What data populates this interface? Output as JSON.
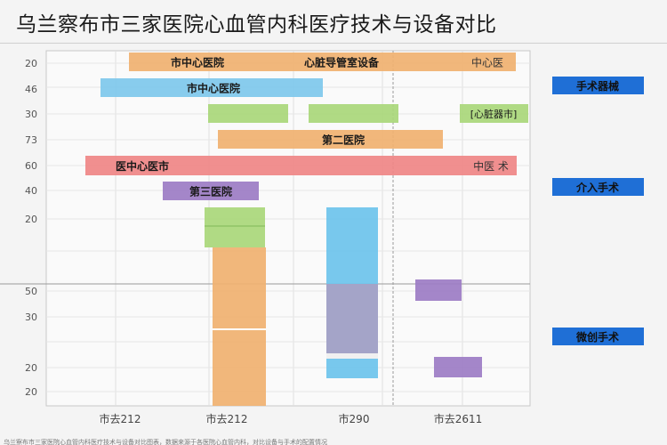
{
  "page": {
    "title": "乌兰察布市三家医院心血管内科医疗技术与设备对比"
  },
  "chart_data": {
    "type": "bar",
    "title": "乌兰察布市三家医院心血管内科医疗技术与设备对比",
    "y_tick_labels": [
      "20",
      "46",
      "30",
      "73",
      "60",
      "40",
      "20",
      "",
      "50",
      "30",
      "20",
      "20"
    ],
    "x_tick_labels": [
      "市去212",
      "市去212",
      "市290",
      "市去2611"
    ],
    "legend": [
      "手术器械",
      "介入手术",
      "微创手术"
    ],
    "legend_color": "#1f6fd6",
    "bars": [
      {
        "label": "市中心医院",
        "label2": "心脏导管室设备",
        "end_text": "中心医",
        "color": "#f0b170"
      },
      {
        "label": "市中心医院",
        "label2": "",
        "end_text": "",
        "color": "#7ec8ec"
      },
      {
        "label": "",
        "label2": "",
        "end_text": "",
        "color": "#a9d77a"
      },
      {
        "label": "",
        "label2": "",
        "end_text": "心脏器市",
        "color": "#a9d77a"
      },
      {
        "label": "第二医院",
        "label2": "",
        "end_text": "",
        "color": "#f0b170"
      },
      {
        "label": "医中心医市",
        "label2": "",
        "end_text": "中医 术",
        "color": "#ef8585"
      },
      {
        "label": "第三医院",
        "label2": "",
        "end_text": "",
        "color": "#9c7cc4"
      },
      {
        "label": "",
        "label2": "",
        "end_text": "",
        "color": "#a9d77a"
      },
      {
        "label": "",
        "label2": "",
        "end_text": "",
        "color": "#f0b170"
      },
      {
        "label": "",
        "label2": "",
        "end_text": "",
        "color": "#6cc3ec"
      },
      {
        "label": "",
        "label2": "",
        "end_text": "",
        "color": "#9c7cc4"
      }
    ],
    "grid": true,
    "legend_position": "right"
  },
  "footer": {
    "note": "乌兰察布市三家医院心血管内科医疗技术与设备对比图表，数据来源于各医院心血管内科，对比设备与手术的配置情况"
  }
}
